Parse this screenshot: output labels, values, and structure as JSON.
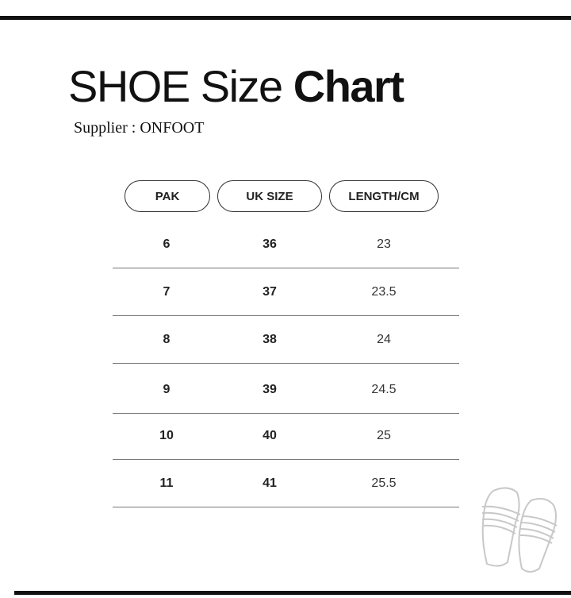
{
  "title": {
    "light": "SHOE Size",
    "bold": "Chart"
  },
  "supplier": "Supplier : ONFOOT",
  "table": {
    "headers": [
      "PAK",
      "UK SIZE",
      "LENGTH/CM"
    ],
    "rows": [
      [
        "6",
        "36",
        "23"
      ],
      [
        "7",
        "37",
        "23.5"
      ],
      [
        "8",
        "38",
        "24"
      ],
      [
        "9",
        "39",
        "24.5"
      ],
      [
        "10",
        "40",
        "25"
      ],
      [
        "11",
        "41",
        "25.5"
      ]
    ]
  },
  "decoration": {
    "icon": "slippers-icon",
    "icon_color": "#c8c8c8"
  }
}
